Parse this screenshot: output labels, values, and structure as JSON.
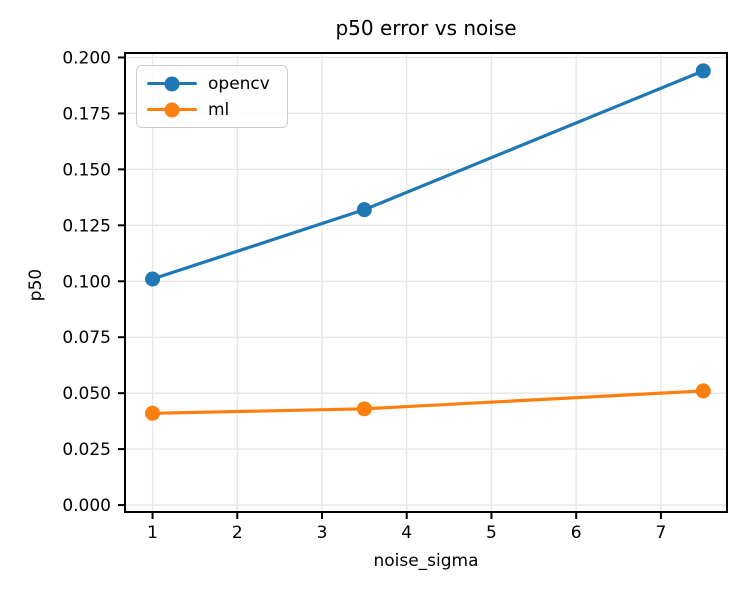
{
  "chart_data": {
    "type": "line",
    "title": "p50 error vs noise",
    "xlabel": "noise_sigma",
    "ylabel": "p50",
    "x": [
      1,
      3.5,
      7.5
    ],
    "series": [
      {
        "name": "opencv",
        "color": "#1f77b4",
        "values": [
          0.101,
          0.132,
          0.194
        ]
      },
      {
        "name": "ml",
        "color": "#ff7f0e",
        "values": [
          0.041,
          0.043,
          0.051
        ]
      }
    ],
    "xlim": [
      0.675,
      7.78
    ],
    "ylim": [
      -0.0031,
      0.202
    ],
    "x_ticks": [
      1,
      2,
      3,
      4,
      5,
      6,
      7
    ],
    "x_tick_labels": [
      "1",
      "2",
      "3",
      "4",
      "5",
      "6",
      "7"
    ],
    "y_ticks": [
      0.0,
      0.025,
      0.05,
      0.075,
      0.1,
      0.125,
      0.15,
      0.175,
      0.2
    ],
    "y_tick_labels": [
      "0.000",
      "0.025",
      "0.050",
      "0.075",
      "0.100",
      "0.125",
      "0.150",
      "0.175",
      "0.200"
    ],
    "grid": true,
    "legend_position": "upper-left",
    "marker": "circle",
    "style": {
      "background": "#ffffff",
      "grid_color": "#e6e6e6",
      "spine_color": "#000000",
      "tick_color": "#000000",
      "text_color": "#000000",
      "legend_border_color": "#cccccc"
    }
  }
}
